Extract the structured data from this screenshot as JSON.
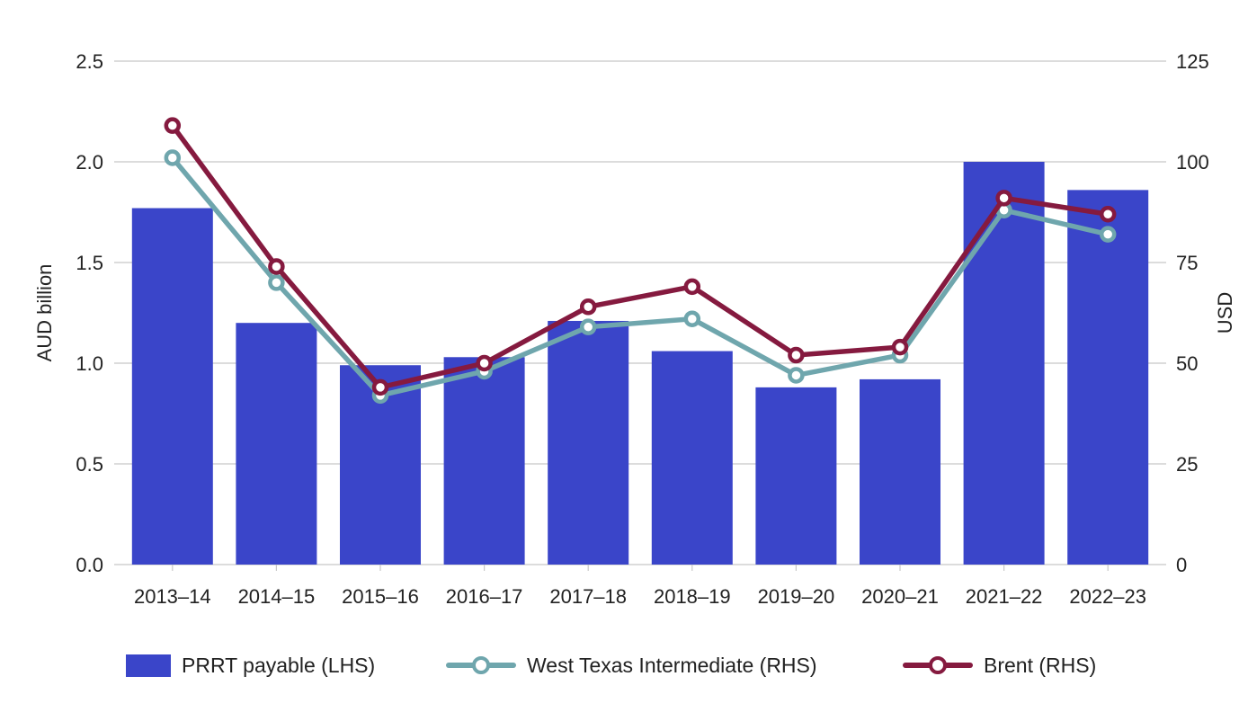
{
  "chart_data": {
    "type": "bar",
    "title": "",
    "categories": [
      "2013–14",
      "2014–15",
      "2015–16",
      "2016–17",
      "2017–18",
      "2018–19",
      "2019–20",
      "2020–21",
      "2021–22",
      "2022–23"
    ],
    "series": [
      {
        "name": "PRRT payable (LHS)",
        "type": "bar",
        "axis": "left",
        "color": "#3a45c9",
        "values": [
          1.77,
          1.2,
          0.99,
          1.03,
          1.21,
          1.06,
          0.88,
          0.92,
          2.0,
          1.86
        ]
      },
      {
        "name": "West Texas Intermediate (RHS)",
        "type": "line",
        "axis": "right",
        "color": "#6fa6ad",
        "values": [
          101,
          70,
          42,
          48,
          59,
          61,
          47,
          52,
          88,
          82
        ]
      },
      {
        "name": "Brent (RHS)",
        "type": "line",
        "axis": "right",
        "color": "#851a3f",
        "values": [
          109,
          74,
          44,
          50,
          64,
          69,
          52,
          54,
          91,
          87
        ]
      }
    ],
    "ylabel": "AUD billion",
    "y2label": "USD",
    "ylim": [
      0,
      2.5
    ],
    "y2lim": [
      0,
      125
    ],
    "yticks": [
      "0.0",
      "0.5",
      "1.0",
      "1.5",
      "2.0",
      "2.5"
    ],
    "y2ticks": [
      "0",
      "25",
      "50",
      "75",
      "100",
      "125"
    ],
    "grid": true,
    "legend_position": "bottom"
  }
}
